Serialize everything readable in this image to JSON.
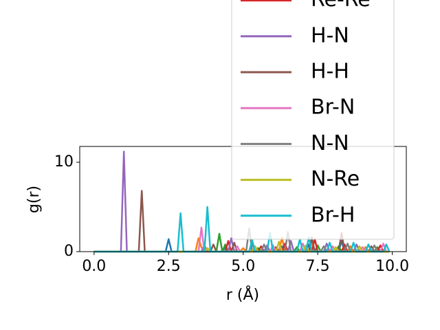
{
  "chart_data": {
    "type": "line",
    "xlabel": "r (Å)",
    "ylabel": "g(r)",
    "xlim": [
      -0.48,
      10.47
    ],
    "ylim": [
      0,
      11.77
    ],
    "xticks": [
      {
        "value": 0,
        "label": "0.0"
      },
      {
        "value": 2.5,
        "label": "2.5"
      },
      {
        "value": 5,
        "label": "5.0"
      },
      {
        "value": 7.5,
        "label": "7.5"
      },
      {
        "value": 10,
        "label": "10.0"
      }
    ],
    "yticks": [
      0,
      10
    ],
    "grid": false,
    "legend": "upper right",
    "x": [
      0,
      0.1,
      0.2,
      0.3,
      0.4,
      0.5,
      0.6,
      0.7,
      0.8,
      0.9,
      1,
      1.1,
      1.2,
      1.3,
      1.4,
      1.5,
      1.6,
      1.7,
      1.8,
      1.9,
      2,
      2.1,
      2.2,
      2.3,
      2.4,
      2.5,
      2.6,
      2.7,
      2.8,
      2.9,
      3,
      3.1,
      3.2,
      3.3,
      3.4,
      3.5,
      3.6,
      3.7,
      3.8,
      3.9,
      4,
      4.1,
      4.2,
      4.3,
      4.4,
      4.5,
      4.6,
      4.7,
      4.8,
      4.9,
      5,
      5.1,
      5.2,
      5.3,
      5.4,
      5.5,
      5.6,
      5.7,
      5.8,
      5.9,
      6,
      6.1,
      6.2,
      6.3,
      6.4,
      6.5,
      6.6,
      6.7,
      6.8,
      6.9,
      7,
      7.1,
      7.2,
      7.3,
      7.4,
      7.5,
      7.6,
      7.7,
      7.8,
      7.9,
      8,
      8.1,
      8.2,
      8.3,
      8.4,
      8.5,
      8.6,
      8.7,
      8.8,
      8.9,
      9,
      9.1,
      9.2,
      9.3,
      9.4,
      9.5,
      9.6,
      9.7,
      9.8,
      9.9
    ],
    "series": [
      {
        "color": "#1f77b4",
        "values": [
          0,
          0,
          0,
          0,
          0,
          0,
          0,
          0,
          0,
          0,
          0,
          0,
          0,
          0,
          0,
          0,
          0,
          0,
          0,
          0,
          0,
          0,
          0,
          0,
          0,
          1.4,
          0,
          0,
          0,
          0,
          0,
          0,
          0,
          0,
          0,
          0,
          0,
          0,
          0,
          0,
          0,
          0,
          0,
          0,
          0.5,
          0,
          0,
          0,
          0,
          0,
          0,
          0,
          0,
          1.0,
          0,
          0,
          0,
          0,
          0,
          0,
          0,
          0,
          0,
          0.6,
          0,
          0,
          0,
          0,
          0,
          0,
          0,
          0,
          0.8,
          0,
          0,
          0,
          0,
          0,
          0,
          0,
          0,
          0,
          0,
          1.2,
          0,
          0,
          0,
          0,
          0,
          0,
          0,
          0,
          0,
          0,
          0,
          0,
          0,
          0,
          0,
          0
        ]
      },
      {
        "color": "#ff7f0e",
        "values": [
          0,
          0,
          0,
          0,
          0,
          0,
          0,
          0,
          0,
          0,
          0,
          0,
          0,
          0,
          0,
          0,
          0,
          0,
          0,
          0,
          0,
          0,
          0,
          0,
          0,
          0,
          0,
          0,
          0,
          0,
          0,
          0,
          0,
          0,
          0,
          1.5,
          0.5,
          0,
          0,
          0,
          0,
          0,
          0,
          0,
          0,
          0,
          0,
          0,
          0,
          0,
          0.4,
          0,
          0,
          0,
          0,
          0,
          0,
          0,
          0,
          0,
          0,
          0,
          0,
          1.6,
          0,
          0,
          0,
          0,
          0,
          0,
          0,
          0,
          0,
          1.0,
          0,
          0,
          0,
          0,
          0,
          0,
          0,
          0,
          0,
          0,
          0,
          0,
          0.6,
          0,
          0,
          0,
          0,
          0.5,
          0,
          0,
          0,
          0,
          0,
          0,
          0,
          0
        ]
      },
      {
        "color": "#2ca02c",
        "values": [
          0,
          0,
          0,
          0,
          0,
          0,
          0,
          0,
          0,
          0,
          0,
          0,
          0,
          0,
          0,
          0,
          0,
          0,
          0,
          0,
          0,
          0,
          0,
          0,
          0,
          0,
          0,
          0,
          0,
          0,
          0,
          0,
          0,
          0,
          0,
          0,
          0,
          0,
          0,
          0,
          0,
          0,
          2.0,
          0,
          0.8,
          0,
          0,
          0,
          0,
          0,
          0,
          0,
          0,
          0,
          0,
          0.4,
          0,
          0,
          0,
          0,
          0,
          0,
          0,
          0,
          0,
          0,
          0,
          0,
          0.5,
          0,
          0,
          0,
          0,
          0,
          0,
          0.7,
          0,
          0,
          0,
          0,
          0,
          0,
          0.6,
          0,
          0,
          0,
          0,
          0,
          0,
          0,
          0,
          0,
          0,
          0,
          0,
          0.5,
          0,
          0,
          0,
          0
        ]
      },
      {
        "name": "Re-Re",
        "color": "#d62728",
        "values": [
          0,
          0,
          0,
          0,
          0,
          0,
          0,
          0,
          0,
          0,
          0,
          0,
          0,
          0,
          0,
          0,
          0,
          0,
          0,
          0,
          0,
          0,
          0,
          0,
          0,
          0,
          0,
          0,
          0,
          0,
          0,
          0,
          0,
          0,
          0,
          0,
          0,
          0,
          0,
          0,
          0,
          0,
          0,
          0,
          0,
          1.2,
          0,
          0,
          0,
          0,
          0,
          0,
          0,
          0,
          0,
          0,
          0.6,
          0,
          0,
          0,
          0,
          0,
          0,
          0,
          0.9,
          0,
          0,
          0,
          0,
          0,
          0,
          0,
          0,
          0,
          1.4,
          0,
          0,
          0,
          0,
          0,
          0,
          0,
          0,
          0,
          0.8,
          0,
          0,
          0,
          0,
          0,
          0,
          0,
          0,
          0,
          0,
          0,
          0.7,
          0,
          0,
          0
        ]
      },
      {
        "name": "H-N",
        "color": "#9467bd",
        "values": [
          0,
          0,
          0,
          0,
          0,
          0,
          0,
          0,
          0,
          0,
          11.2,
          0,
          0,
          0,
          0,
          0,
          0,
          0,
          0,
          0,
          0,
          0,
          0,
          0,
          0,
          0,
          0,
          0,
          0,
          0,
          0,
          0,
          0,
          0,
          0,
          0,
          0,
          0.7,
          0,
          0,
          0,
          0,
          0,
          0,
          0,
          0,
          1.5,
          0,
          0,
          0,
          0,
          0,
          0,
          0,
          0,
          0,
          0,
          0,
          0.7,
          0,
          0,
          0,
          0,
          0,
          0,
          0,
          1.2,
          0,
          0,
          0,
          0,
          0,
          0,
          0,
          0,
          0,
          0,
          0,
          0.9,
          0,
          0,
          0,
          0,
          0,
          0,
          0,
          0,
          0,
          0.8,
          0,
          0,
          0,
          0,
          0,
          0,
          0,
          0,
          0,
          0,
          0
        ]
      },
      {
        "name": "H-H",
        "color": "#8c564b",
        "values": [
          0,
          0,
          0,
          0,
          0,
          0,
          0,
          0,
          0,
          0,
          0,
          0,
          0,
          0,
          0,
          0,
          6.8,
          0,
          0,
          0,
          0,
          0,
          0,
          0,
          0,
          0,
          0,
          0,
          0,
          0,
          0,
          0,
          0,
          0,
          0,
          0,
          0,
          0,
          0,
          0,
          0.8,
          0,
          0,
          0,
          0,
          0,
          0,
          1.0,
          0,
          0,
          0,
          0,
          0,
          0,
          0,
          0,
          0,
          0,
          0,
          0,
          0,
          0.5,
          0,
          0,
          0,
          0,
          0,
          0,
          0,
          0,
          0,
          0,
          0,
          1.6,
          0,
          0,
          0,
          0,
          0,
          0,
          0,
          0,
          0,
          2.1,
          0,
          0,
          0,
          0,
          0,
          0,
          0,
          0,
          0,
          0.6,
          0,
          0,
          0,
          0,
          0,
          0
        ]
      },
      {
        "name": "Br-N",
        "color": "#e377c2",
        "values": [
          0,
          0,
          0,
          0,
          0,
          0,
          0,
          0,
          0,
          0,
          0,
          0,
          0,
          0,
          0,
          0,
          0,
          0,
          0,
          0,
          0,
          0,
          0,
          0,
          0,
          0,
          0,
          0,
          0,
          0,
          0,
          0,
          0,
          0,
          0,
          0,
          2.7,
          0,
          0,
          0,
          0,
          0,
          0,
          0,
          0,
          0,
          0,
          0,
          0.6,
          0,
          0,
          0,
          0,
          0,
          0,
          0,
          0,
          0,
          0,
          0,
          0.7,
          0,
          0,
          0,
          0,
          0,
          0,
          0,
          0,
          0,
          0.9,
          0,
          0,
          0,
          0,
          0,
          0,
          0,
          0,
          0,
          0.6,
          0,
          0,
          0,
          0,
          0,
          0,
          0,
          0,
          0,
          0.5,
          0,
          0,
          0,
          0,
          0,
          0,
          0.9,
          0,
          0
        ]
      },
      {
        "name": "N-N",
        "color": "#7f7f7f",
        "values": [
          0,
          0,
          0,
          0,
          0,
          0,
          0,
          0,
          0,
          0,
          0,
          0,
          0,
          0,
          0,
          0,
          0,
          0,
          0,
          0,
          0,
          0,
          0,
          0,
          0,
          0,
          0,
          0,
          0,
          0,
          0,
          0,
          0,
          0,
          0,
          0,
          0,
          0,
          0,
          0,
          0,
          0,
          0,
          0,
          0,
          0,
          0,
          0,
          0,
          0,
          0,
          0,
          2.6,
          0,
          0,
          0,
          0,
          0.8,
          0,
          0,
          0,
          0,
          0,
          0,
          0,
          2.2,
          0,
          0,
          0,
          0,
          0,
          0,
          0,
          0,
          0,
          0,
          0,
          0.6,
          0,
          0,
          0,
          0,
          0,
          0,
          0,
          0.9,
          0,
          0,
          0,
          0,
          0,
          0,
          0,
          0,
          0.7,
          0,
          0,
          0,
          0,
          0
        ]
      },
      {
        "name": "N-Re",
        "color": "#bcbd22",
        "values": [
          0,
          0,
          0,
          0,
          0,
          0,
          0,
          0,
          0,
          0,
          0,
          0,
          0,
          0,
          0,
          0,
          0,
          0,
          0,
          0,
          0,
          0,
          0,
          0,
          0,
          0,
          0,
          0,
          0,
          0,
          0,
          0,
          0,
          0,
          0,
          0,
          0,
          0,
          0.4,
          0,
          0,
          0,
          0,
          0,
          0,
          0,
          0,
          0,
          0,
          0,
          0,
          0,
          0,
          0,
          0.6,
          0,
          0,
          0,
          0,
          0,
          0,
          0,
          1.1,
          0,
          0,
          0,
          0,
          0,
          0,
          0,
          0,
          0.7,
          0,
          0,
          0,
          0,
          0,
          0,
          0,
          0,
          0,
          0.5,
          0,
          0,
          0,
          0,
          0,
          0,
          0,
          0.6,
          0,
          0,
          0,
          0,
          0,
          0,
          0,
          0,
          0,
          0
        ]
      },
      {
        "name": "Br-H",
        "color": "#17becf",
        "values": [
          0,
          0,
          0,
          0,
          0,
          0,
          0,
          0,
          0,
          0,
          0,
          0,
          0,
          0,
          0,
          0,
          0,
          0,
          0,
          0,
          0,
          0,
          0,
          0,
          0,
          0,
          0,
          0,
          0,
          4.3,
          0,
          0,
          0,
          0,
          0,
          0,
          0,
          0,
          5.0,
          0,
          0,
          0,
          0,
          0,
          0,
          0,
          0,
          0,
          0,
          0,
          0,
          0,
          0,
          1.3,
          0,
          0,
          0,
          0,
          0,
          2.1,
          0,
          0,
          0,
          0,
          0,
          0,
          0,
          0,
          0,
          1.4,
          0,
          0,
          1.6,
          0,
          0,
          0,
          0,
          0,
          0,
          1.0,
          0,
          0,
          0,
          0,
          0,
          0,
          0,
          1.0,
          0,
          0,
          0,
          0,
          0.8,
          0,
          0,
          0,
          0,
          0,
          0.8,
          0
        ]
      }
    ]
  }
}
